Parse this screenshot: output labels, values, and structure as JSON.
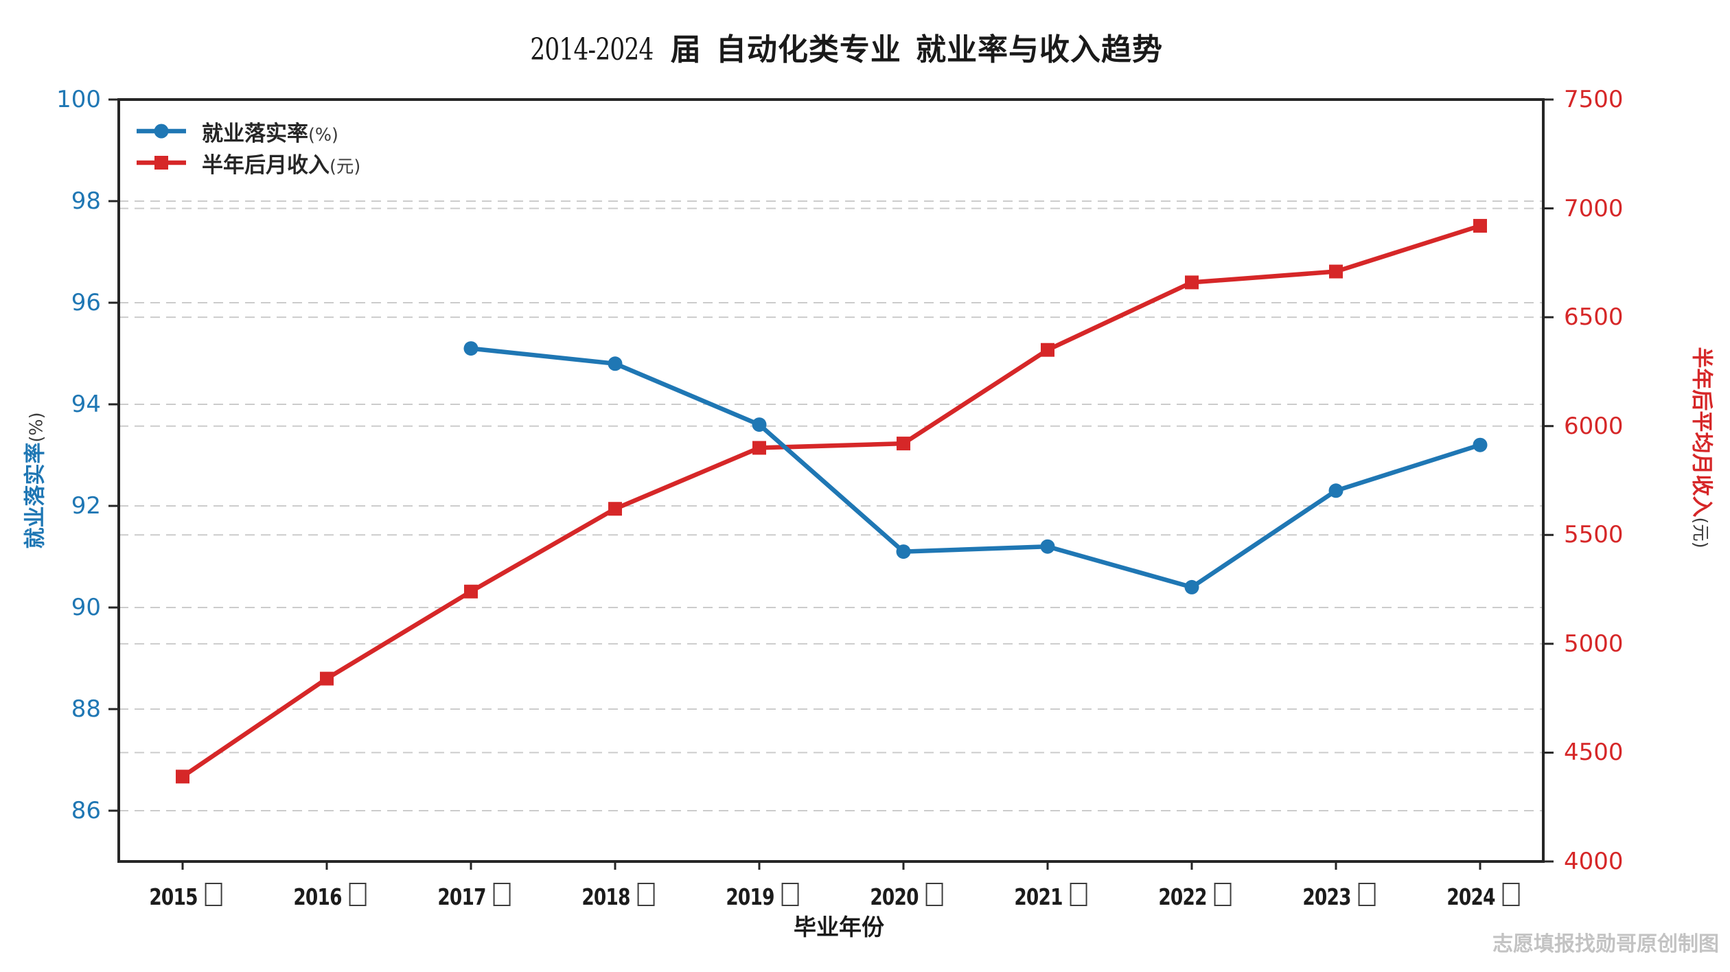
{
  "title": {
    "digits": "2014-2024",
    "jie": "届",
    "seg2": "自动化类专业",
    "seg3": "就业率与收入趋势"
  },
  "legend": {
    "items": [
      {
        "label": "就业落实率",
        "unit": "(%)",
        "color": "#1f77b4",
        "marker": "circle"
      },
      {
        "label": "半年后月收入",
        "unit": "(元)",
        "color": "#d62728",
        "marker": "square"
      }
    ]
  },
  "left_axis": {
    "label": "就业落实率",
    "unit": "(%)",
    "color": "#1f77b4",
    "ticks": [
      86,
      88,
      90,
      92,
      94,
      96,
      98,
      100
    ],
    "range": [
      85,
      100
    ]
  },
  "right_axis": {
    "label": "半年后平均月收入",
    "unit": "(元)",
    "color": "#d62728",
    "ticks": [
      4000,
      4500,
      5000,
      5500,
      6000,
      6500,
      7000,
      7500
    ],
    "range": [
      4000,
      7500
    ]
  },
  "x_axis": {
    "label": "毕业年份",
    "suffix": "届",
    "categories": [
      "2015",
      "2016",
      "2017",
      "2018",
      "2019",
      "2020",
      "2021",
      "2022",
      "2023",
      "2024"
    ]
  },
  "watermark": "志愿填报找勋哥原创制图",
  "colors": {
    "blue": "#1f77b4",
    "red": "#d62728",
    "grid": "#cccccc",
    "spine": "#262626",
    "xtick_text": "#1c1c1c"
  },
  "chart_data": {
    "type": "line",
    "title": "2014-2024届 自动化类专业 就业率与收入趋势",
    "x": [
      "2015届",
      "2016届",
      "2017届",
      "2018届",
      "2019届",
      "2020届",
      "2021届",
      "2022届",
      "2023届",
      "2024届"
    ],
    "xlabel": "毕业年份",
    "left_ylabel": "就业落实率(%)",
    "right_ylabel": "半年后平均月收入(元)",
    "left_ylim": [
      85,
      100
    ],
    "right_ylim": [
      4000,
      7500
    ],
    "grid": true,
    "grid_style": "dashed",
    "legend_position": "upper left",
    "series": [
      {
        "name": "就业落实率(%)",
        "axis": "left",
        "color": "#1f77b4",
        "marker": "circle",
        "values": [
          null,
          null,
          95.1,
          94.8,
          93.6,
          91.1,
          91.2,
          90.4,
          92.3,
          93.2
        ]
      },
      {
        "name": "半年后月收入(元)",
        "axis": "right",
        "color": "#d62728",
        "marker": "square",
        "values": [
          4390,
          4840,
          5240,
          5620,
          5900,
          5920,
          6350,
          6660,
          6710,
          6920
        ]
      }
    ]
  }
}
